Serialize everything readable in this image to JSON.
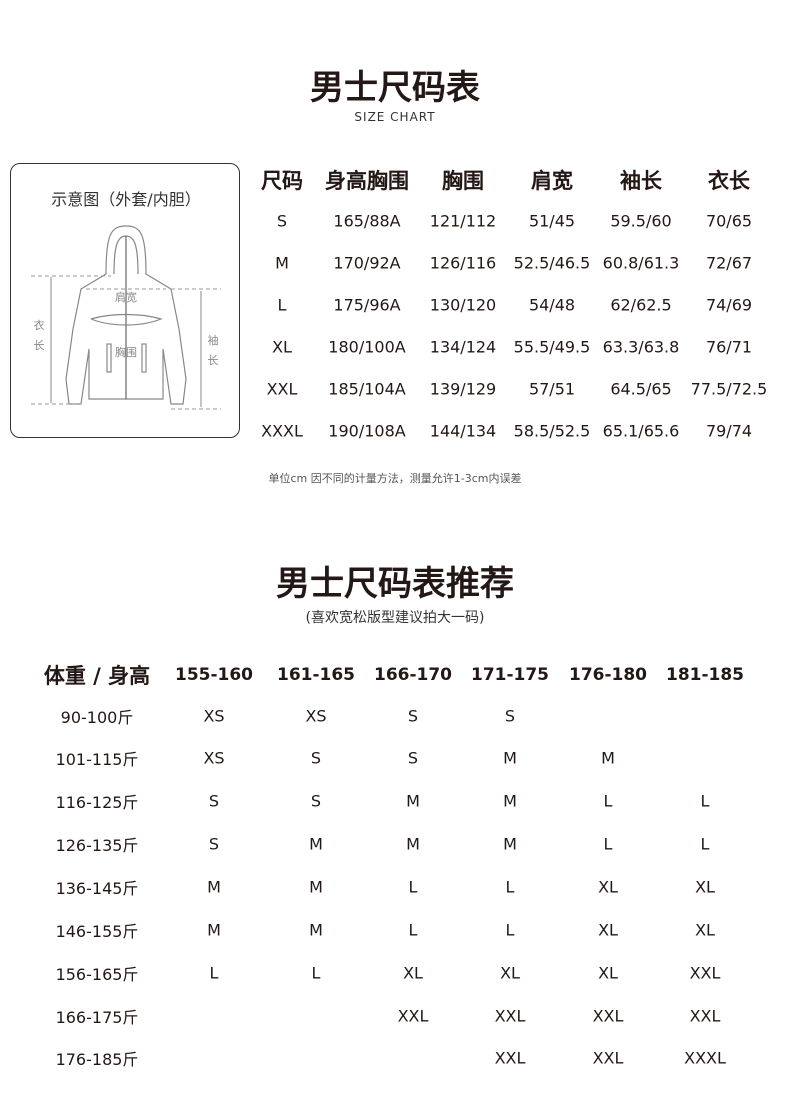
{
  "size_chart": {
    "title": "男士尺码表",
    "subtitle": "SIZE CHART",
    "diagram": {
      "title": "示意图（外套/内胆）",
      "labels": {
        "shoulder": "肩宽",
        "chest": "胸围",
        "length_1": "衣",
        "length_2": "长",
        "sleeve_1": "袖",
        "sleeve_2": "长"
      }
    },
    "headers": [
      "尺码",
      "身高胸围",
      "胸围",
      "肩宽",
      "袖长",
      "衣长"
    ],
    "rows": [
      [
        "S",
        "165/88A",
        "121/112",
        "51/45",
        "59.5/60",
        "70/65"
      ],
      [
        "M",
        "170/92A",
        "126/116",
        "52.5/46.5",
        "60.8/61.3",
        "72/67"
      ],
      [
        "L",
        "175/96A",
        "130/120",
        "54/48",
        "62/62.5",
        "74/69"
      ],
      [
        "XL",
        "180/100A",
        "134/124",
        "55.5/49.5",
        "63.3/63.8",
        "76/71"
      ],
      [
        "XXL",
        "185/104A",
        "139/129",
        "57/51",
        "64.5/65",
        "77.5/72.5"
      ],
      [
        "XXXL",
        "190/108A",
        "144/134",
        "58.5/52.5",
        "65.1/65.6",
        "79/74"
      ]
    ],
    "note": "单位cm 因不同的计量方法，测量允许1-3cm内误差"
  },
  "recommendation": {
    "title": "男士尺码表推荐",
    "subtitle": "(喜欢宽松版型建议拍大一码)",
    "corner_header": "体重 / 身高",
    "height_headers": [
      "155-160",
      "161-165",
      "166-170",
      "171-175",
      "176-180",
      "181-185"
    ],
    "rows": [
      {
        "weight": "90-100斤",
        "sizes": [
          "XS",
          "XS",
          "S",
          "S",
          "",
          ""
        ]
      },
      {
        "weight": "101-115斤",
        "sizes": [
          "XS",
          "S",
          "S",
          "M",
          "M",
          ""
        ]
      },
      {
        "weight": "116-125斤",
        "sizes": [
          "S",
          "S",
          "M",
          "M",
          "L",
          "L"
        ]
      },
      {
        "weight": "126-135斤",
        "sizes": [
          "S",
          "M",
          "M",
          "M",
          "L",
          "L"
        ]
      },
      {
        "weight": "136-145斤",
        "sizes": [
          "M",
          "M",
          "L",
          "L",
          "XL",
          "XL"
        ]
      },
      {
        "weight": "146-155斤",
        "sizes": [
          "M",
          "M",
          "L",
          "L",
          "XL",
          "XL"
        ]
      },
      {
        "weight": "156-165斤",
        "sizes": [
          "L",
          "L",
          "XL",
          "XL",
          "XL",
          "XXL"
        ]
      },
      {
        "weight": "166-175斤",
        "sizes": [
          "",
          "",
          "XXL",
          "XXL",
          "XXL",
          "XXL"
        ]
      },
      {
        "weight": "176-185斤",
        "sizes": [
          "",
          "",
          "",
          "XXL",
          "XXL",
          "XXXL"
        ]
      }
    ]
  }
}
